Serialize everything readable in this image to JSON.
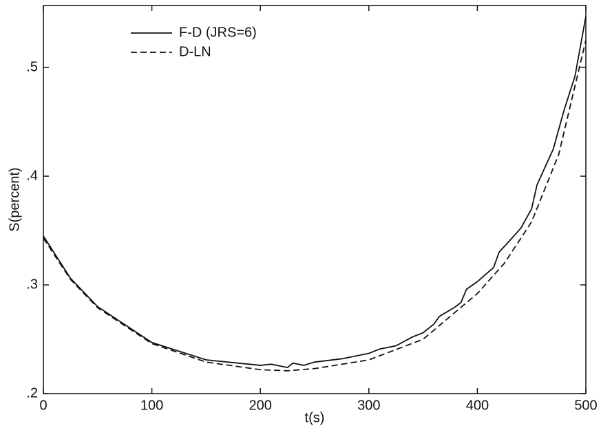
{
  "chart_data": {
    "type": "line",
    "xlabel": "t(s)",
    "ylabel": "S(percent)",
    "xlim": [
      0,
      500
    ],
    "xticks": [
      0,
      100,
      200,
      300,
      400,
      500
    ],
    "ylim": [
      0.2,
      0.557
    ],
    "yticks": [
      {
        "value": 0.2,
        "label": ".2"
      },
      {
        "value": 0.3,
        "label": ".3"
      },
      {
        "value": 0.4,
        "label": ".4"
      },
      {
        "value": 0.5,
        "label": ".5"
      }
    ],
    "legend": "upper left",
    "series": [
      {
        "name": "F-D (JRS=6)",
        "color": "#111111",
        "dash": false,
        "x": [
          0,
          25,
          50,
          100,
          150,
          200,
          210,
          225,
          230,
          240,
          250,
          275,
          300,
          310,
          325,
          340,
          350,
          360,
          365,
          380,
          385,
          390,
          400,
          415,
          420,
          440,
          450,
          455,
          460,
          470,
          480,
          490,
          500
        ],
        "values": [
          0.345,
          0.306,
          0.28,
          0.247,
          0.231,
          0.226,
          0.227,
          0.224,
          0.228,
          0.226,
          0.229,
          0.232,
          0.237,
          0.241,
          0.244,
          0.252,
          0.256,
          0.264,
          0.271,
          0.28,
          0.284,
          0.296,
          0.303,
          0.316,
          0.33,
          0.352,
          0.37,
          0.392,
          0.403,
          0.425,
          0.461,
          0.492,
          0.547
        ]
      },
      {
        "name": "D-LN",
        "color": "#111111",
        "dash": true,
        "x": [
          0,
          25,
          50,
          100,
          150,
          200,
          225,
          250,
          300,
          350,
          400,
          425,
          450,
          475,
          500
        ],
        "values": [
          0.343,
          0.305,
          0.279,
          0.246,
          0.229,
          0.222,
          0.221,
          0.223,
          0.231,
          0.25,
          0.292,
          0.32,
          0.358,
          0.42,
          0.525
        ]
      }
    ]
  }
}
